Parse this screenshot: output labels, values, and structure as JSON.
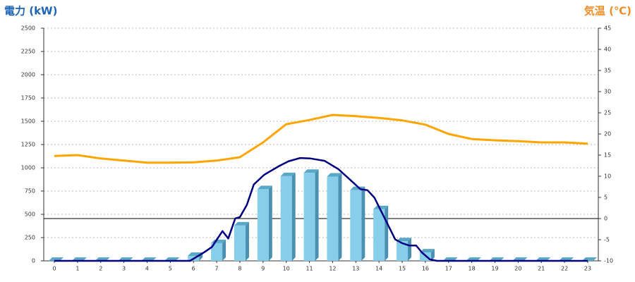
{
  "chart_data": {
    "type": "bar",
    "y_label": "電力 (kW)",
    "y2_label": "気温 (℃)",
    "categories": [
      "0",
      "1",
      "2",
      "3",
      "4",
      "5",
      "6",
      "7",
      "8",
      "9",
      "10",
      "11",
      "12",
      "13",
      "14",
      "15",
      "16",
      "17",
      "18",
      "19",
      "20",
      "21",
      "22",
      "23"
    ],
    "ylim": [
      0,
      2500
    ],
    "yticks": [
      0,
      250,
      500,
      750,
      1000,
      1250,
      1500,
      1750,
      2000,
      2250,
      2500
    ],
    "y2lim": [
      -10,
      45
    ],
    "y2ticks": [
      -10,
      -5,
      0,
      5,
      10,
      15,
      20,
      25,
      30,
      35,
      40,
      45
    ],
    "y2_reference_line": 0,
    "grid": true,
    "series": [
      {
        "type": "bar",
        "color": "#87ceeb",
        "values": [
          0,
          0,
          0,
          0,
          0,
          0,
          53,
          190,
          380,
          770,
          910,
          945,
          905,
          760,
          555,
          210,
          90,
          0,
          0,
          0,
          0,
          0,
          0,
          0
        ]
      },
      {
        "type": "line",
        "color": "#000080",
        "x": [
          0,
          1,
          2,
          3,
          4,
          5,
          5.85,
          6.5,
          6.8,
          7.25,
          7.5,
          7.8,
          8.0,
          8.3,
          8.6,
          9.05,
          9.7,
          10.1,
          10.6,
          11.05,
          11.65,
          12.25,
          12.85,
          13.2,
          13.5,
          13.8,
          14.1,
          14.4,
          14.7,
          15.0,
          15.3,
          15.6,
          15.85,
          16.2,
          16.5,
          17,
          18,
          19,
          20,
          21,
          22,
          23
        ],
        "values": [
          0,
          0,
          0,
          0,
          0,
          0,
          0,
          98,
          150,
          320,
          240,
          455,
          470,
          600,
          820,
          925,
          1020,
          1070,
          1105,
          1100,
          1075,
          985,
          850,
          770,
          760,
          680,
          530,
          380,
          230,
          190,
          165,
          165,
          90,
          15,
          0,
          0,
          0,
          0,
          0,
          0,
          0,
          0
        ]
      },
      {
        "type": "line",
        "axis": "y2",
        "color": "#ffa500",
        "values": [
          14.8,
          15,
          14.2,
          13.7,
          13.2,
          13.2,
          13.3,
          13.7,
          14.5,
          18,
          22.3,
          23.3,
          24.5,
          24.2,
          23.8,
          23.2,
          22.2,
          20,
          18.8,
          18.5,
          18.3,
          18,
          18,
          17.7
        ]
      }
    ]
  }
}
